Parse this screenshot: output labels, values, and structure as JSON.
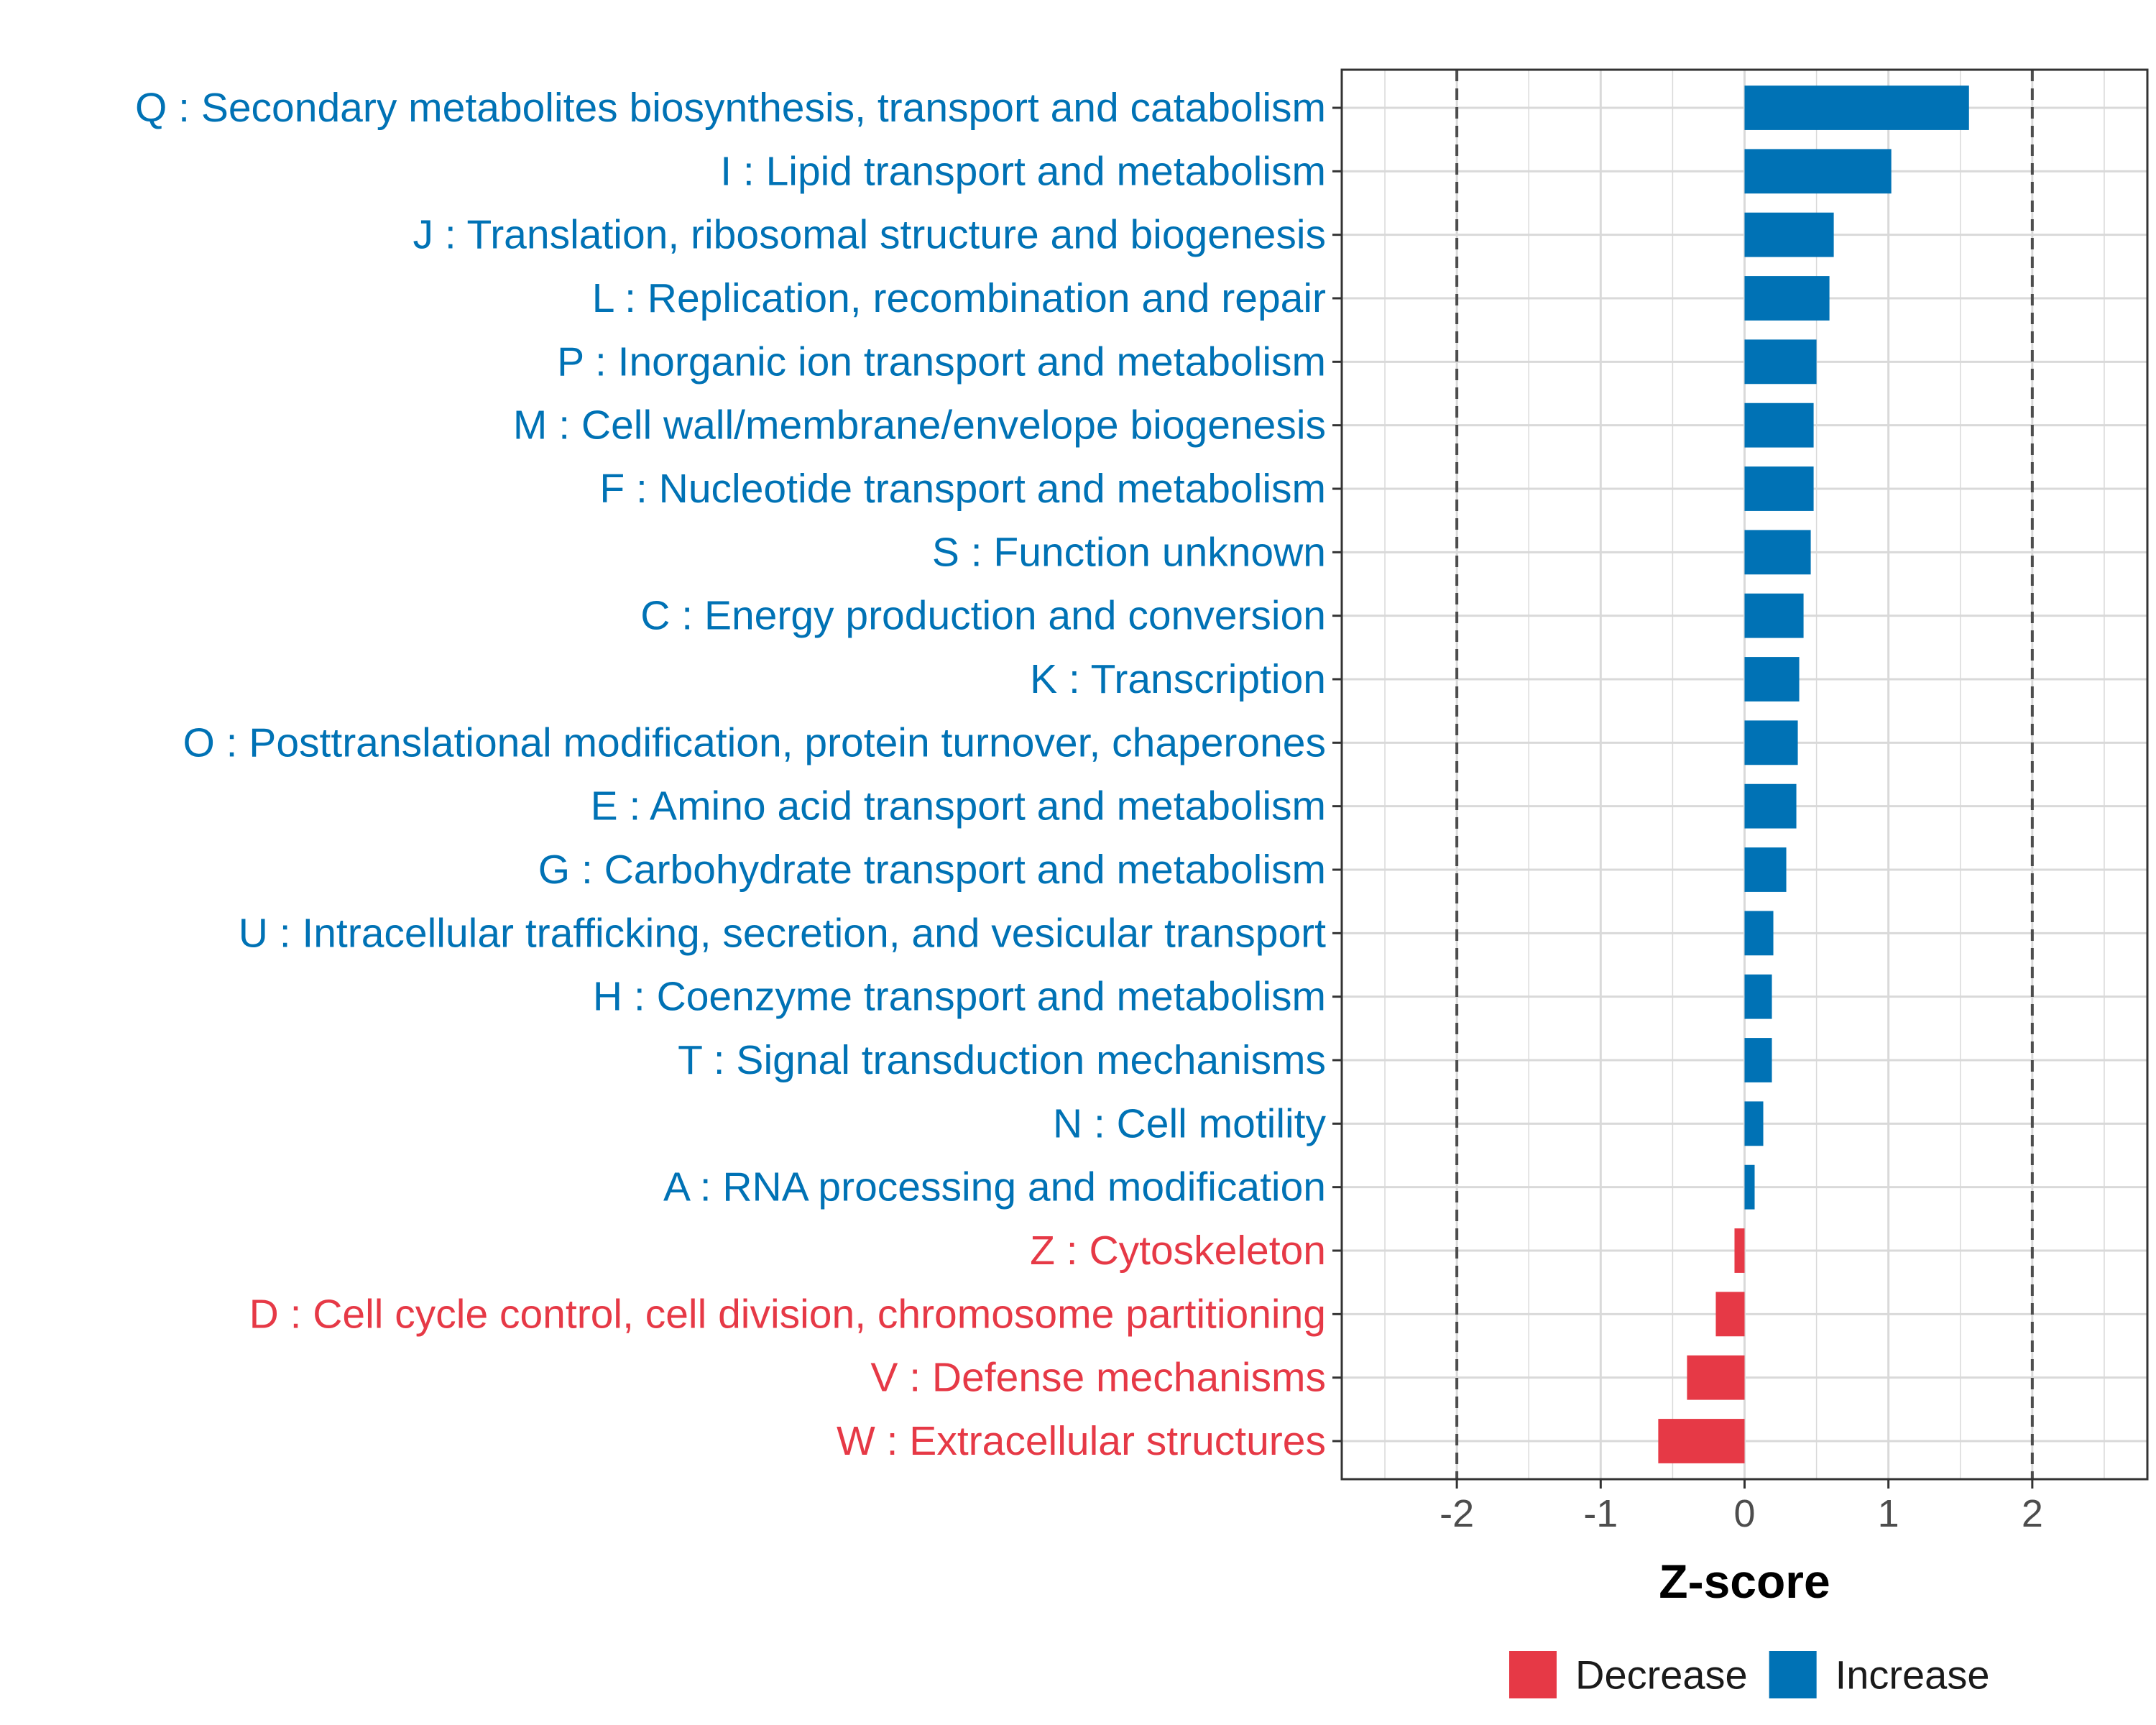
{
  "chart_data": {
    "type": "bar",
    "orientation": "horizontal",
    "xlabel": "Z-score",
    "xlim": [
      -2.8,
      2.8
    ],
    "xticks": [
      -2,
      -1,
      0,
      1,
      2
    ],
    "xtick_labels": [
      "-2",
      "-1",
      "0",
      "1",
      "2"
    ],
    "reference_lines": [
      -2,
      2
    ],
    "grid": true,
    "legend_position": "bottom",
    "colors": {
      "Increase": "#0072B5",
      "Decrease": "#E63946",
      "grid": "#d9d9d9",
      "refline": "#4d4d4d"
    },
    "legend": [
      {
        "name": "Decrease",
        "color": "#E63946"
      },
      {
        "name": "Increase",
        "color": "#0072B5"
      }
    ],
    "categories": [
      "Q : Secondary metabolites biosynthesis, transport and catabolism",
      "I : Lipid transport and metabolism",
      "J : Translation, ribosomal structure and biogenesis",
      "L : Replication, recombination and repair",
      "P : Inorganic ion transport and metabolism",
      "M : Cell wall/membrane/envelope biogenesis",
      "F : Nucleotide transport and metabolism",
      "S : Function unknown",
      "C : Energy production and conversion",
      "K : Transcription",
      "O : Posttranslational modification, protein turnover, chaperones",
      "E : Amino acid transport and metabolism",
      "G : Carbohydrate transport and metabolism",
      "U : Intracellular trafficking, secretion, and vesicular transport",
      "H : Coenzyme transport and metabolism",
      "T : Signal transduction mechanisms",
      "N : Cell motility",
      "A : RNA processing and modification",
      "Z : Cytoskeleton",
      "D : Cell cycle control, cell division, chromosome partitioning",
      "V : Defense mechanisms",
      "W : Extracellular structures"
    ],
    "values": [
      1.56,
      1.02,
      0.62,
      0.59,
      0.5,
      0.48,
      0.48,
      0.46,
      0.41,
      0.38,
      0.37,
      0.36,
      0.29,
      0.2,
      0.19,
      0.19,
      0.13,
      0.07,
      -0.07,
      -0.2,
      -0.4,
      -0.6
    ],
    "groups": [
      "Increase",
      "Increase",
      "Increase",
      "Increase",
      "Increase",
      "Increase",
      "Increase",
      "Increase",
      "Increase",
      "Increase",
      "Increase",
      "Increase",
      "Increase",
      "Increase",
      "Increase",
      "Increase",
      "Increase",
      "Increase",
      "Decrease",
      "Decrease",
      "Decrease",
      "Decrease"
    ]
  }
}
